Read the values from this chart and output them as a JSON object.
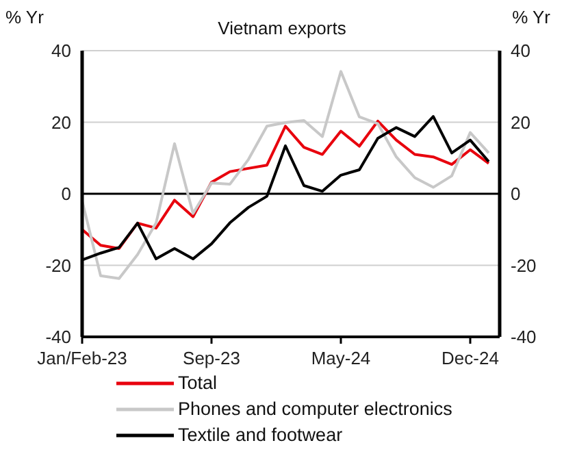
{
  "chart_data": {
    "type": "line",
    "title": "Vietnam exports",
    "ylabel": "% Yr",
    "y2label": "% Yr",
    "categories": [
      "Jan/Feb-23",
      null,
      null,
      null,
      null,
      null,
      null,
      "Sep-23",
      null,
      null,
      null,
      null,
      null,
      null,
      "May-24",
      null,
      null,
      null,
      null,
      null,
      null,
      "Dec-24",
      null
    ],
    "series": [
      {
        "name": "Total",
        "color": "#e8000d",
        "values": [
          -10,
          -14.4,
          -15.3,
          -8.2,
          -9.6,
          -1.8,
          -6.4,
          3.2,
          6.2,
          7.1,
          8,
          18.9,
          13,
          11,
          17.5,
          13.3,
          20.3,
          15,
          11,
          10.3,
          8.2,
          12.3,
          8.5
        ]
      },
      {
        "name": "Phones and computer electronics",
        "color": "#c8c8c8",
        "values": [
          -2,
          -22.9,
          -23.7,
          -17,
          -8.2,
          14,
          -5.5,
          3,
          2.7,
          9.6,
          18.9,
          19.9,
          20.5,
          16,
          34.2,
          21.5,
          19.6,
          10.3,
          4.5,
          1.8,
          5,
          17.1,
          11.4
        ]
      },
      {
        "name": "Textile and footwear",
        "color": "#000000",
        "values": [
          -18.5,
          -16.6,
          -15,
          -8.2,
          -18.2,
          -15.3,
          -18.2,
          -14,
          -8.1,
          -3.8,
          -0.7,
          13.4,
          2.3,
          0.7,
          5.2,
          6.7,
          15.5,
          18.5,
          16,
          21.6,
          11.4,
          15,
          9
        ]
      }
    ],
    "ylim": [
      -40,
      40
    ],
    "yticks": [
      -40,
      -20,
      0,
      20,
      40
    ],
    "y2lim": [
      -40,
      40
    ],
    "y2ticks": [
      -40,
      -20,
      0,
      20,
      40
    ],
    "ref_lines": [
      {
        "axis": "y",
        "value": 0,
        "color": "#000000"
      }
    ],
    "grid": "y",
    "legend": "bottom",
    "marker": "none",
    "line_style": "solid"
  }
}
